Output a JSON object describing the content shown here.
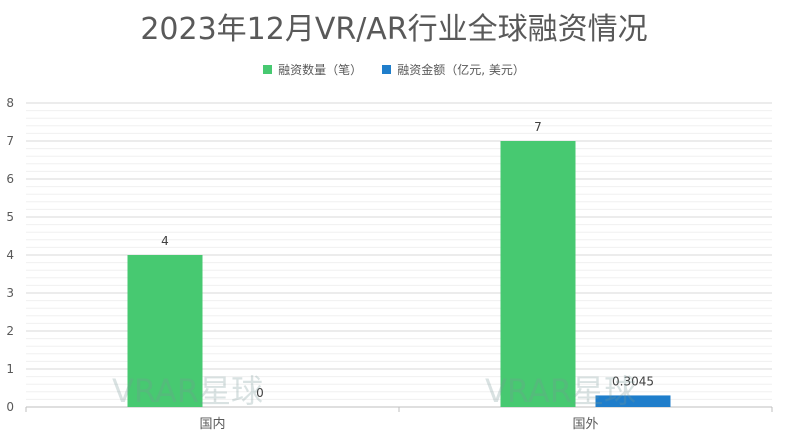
{
  "chart_data": {
    "type": "bar",
    "title": "2023年12月VR/AR行业全球融资情况",
    "categories": [
      "国内",
      "国外"
    ],
    "series": [
      {
        "name": "融资数量（笔）",
        "values": [
          4,
          7
        ],
        "labels": [
          "4",
          "7"
        ],
        "color": "#47c971"
      },
      {
        "name": "融资金额（亿元, 美元）",
        "values": [
          0,
          0.3045
        ],
        "labels": [
          "0",
          "0.3045"
        ],
        "color": "#1f7ecb"
      }
    ],
    "ylim": [
      0,
      8
    ],
    "yticks": [
      "0",
      "1",
      "2",
      "3",
      "4",
      "5",
      "6",
      "7",
      "8"
    ],
    "legend_position": "top",
    "grid": true,
    "watermark": "VRAR星球"
  }
}
